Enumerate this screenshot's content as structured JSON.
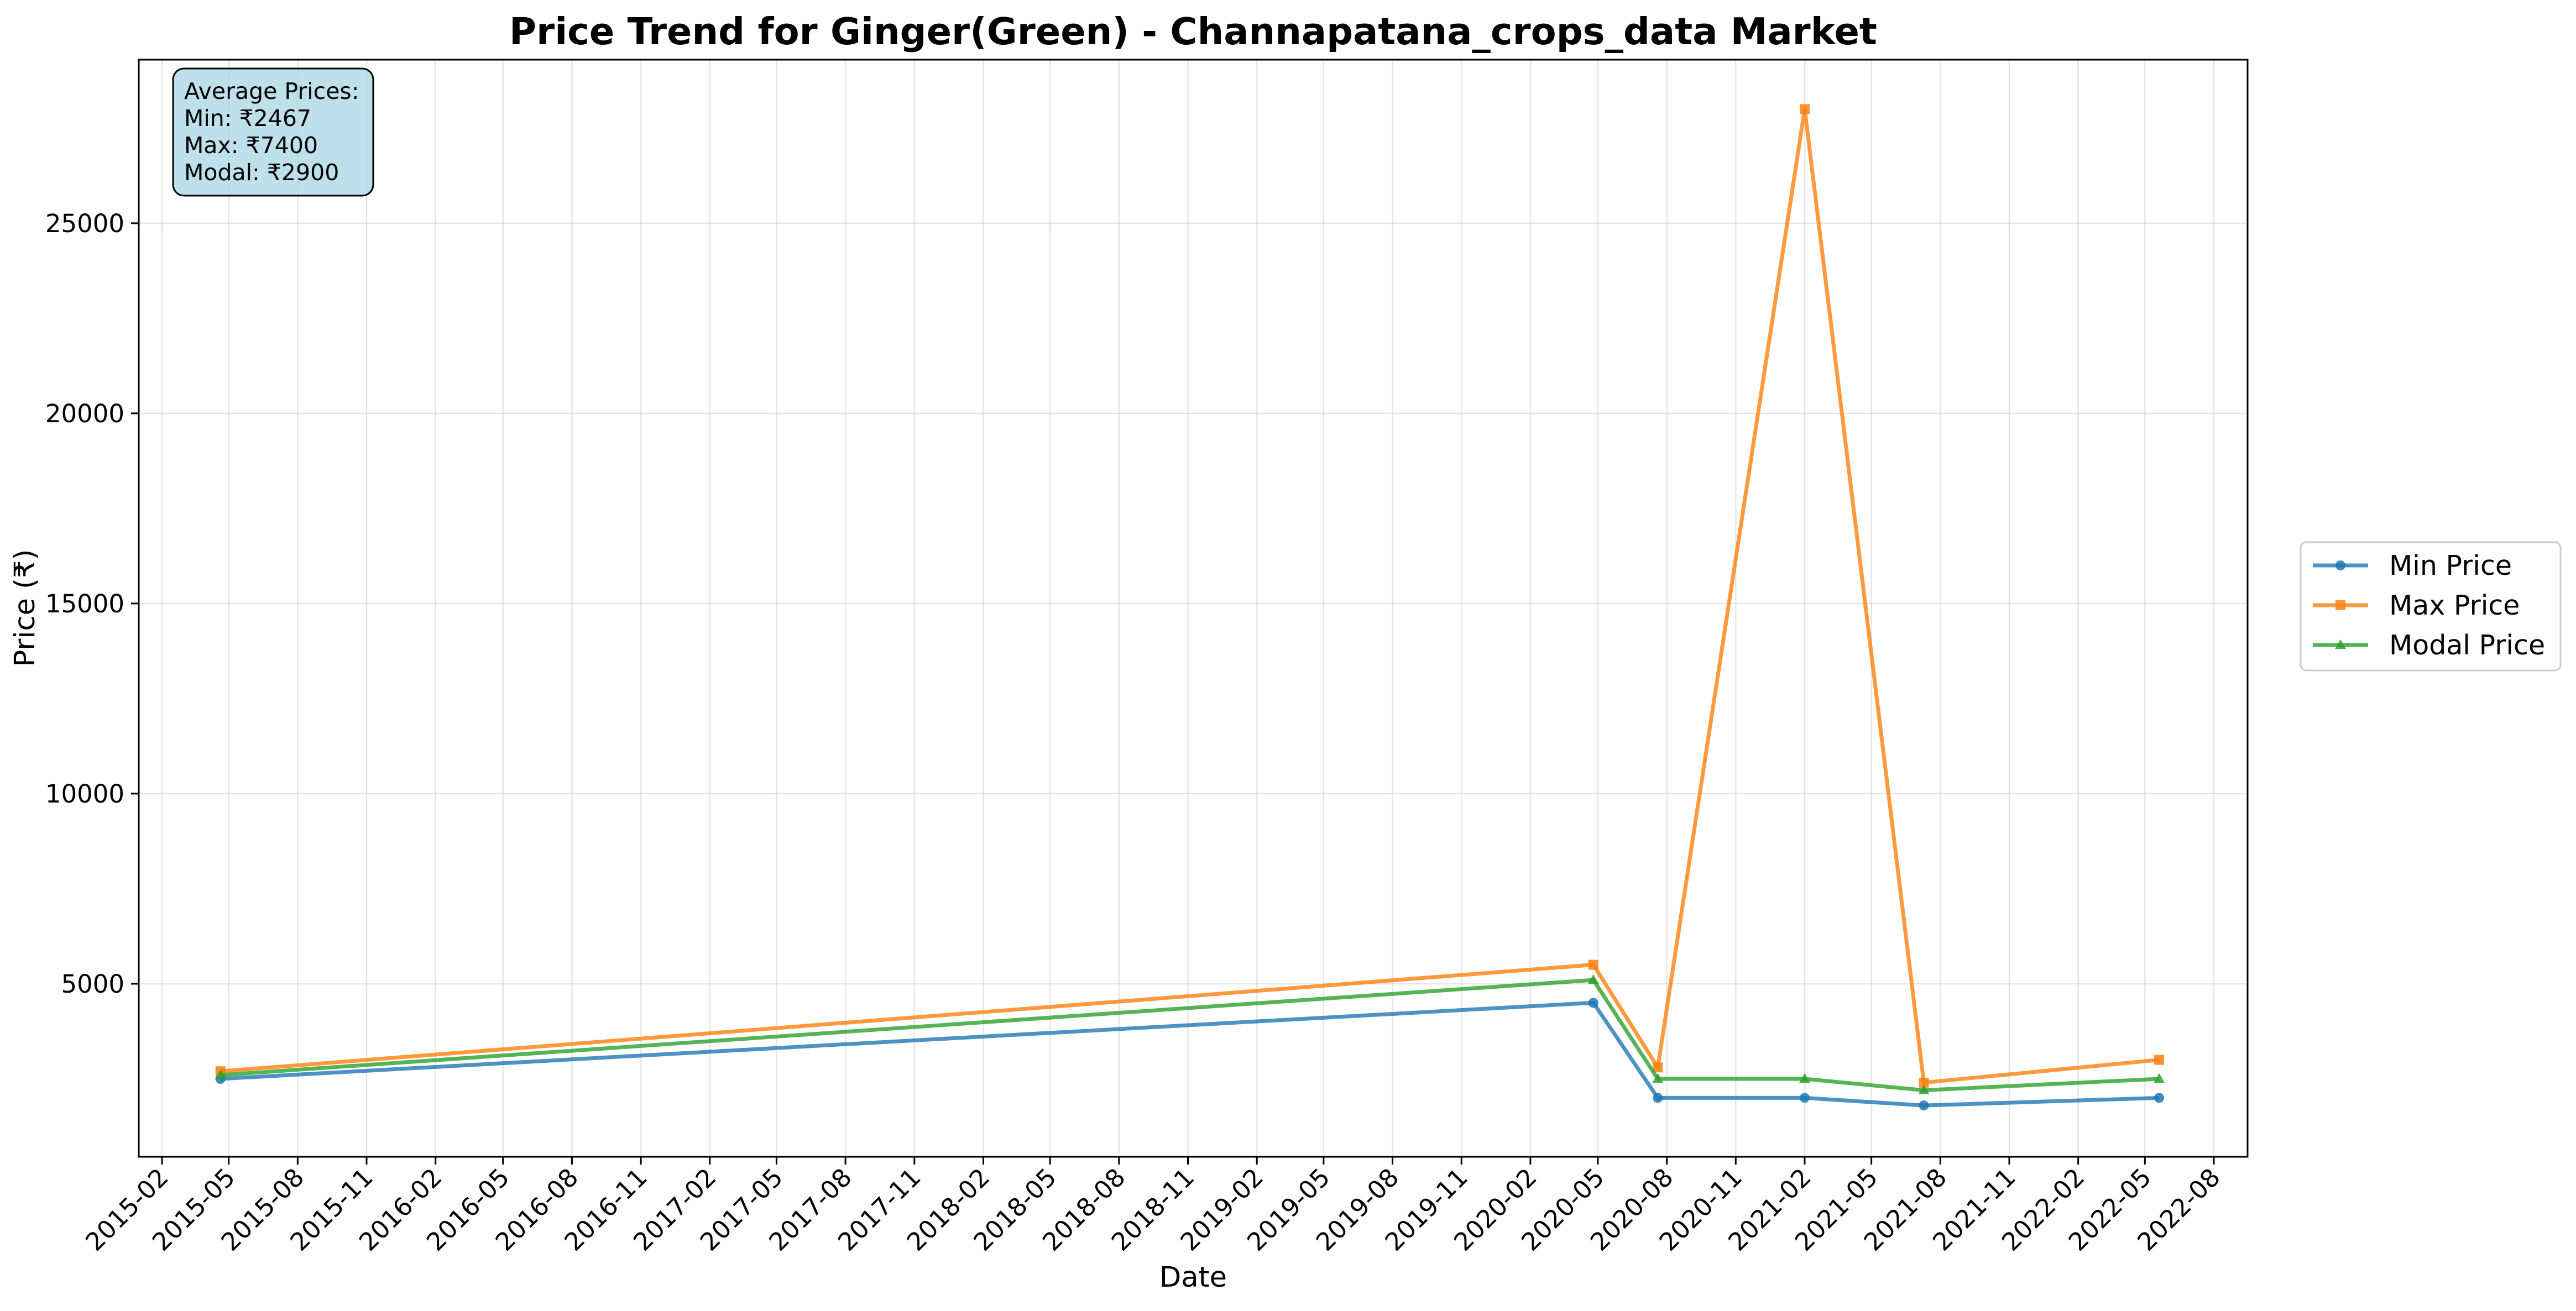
{
  "chart_data": {
    "type": "line",
    "title": "Price Trend for Ginger(Green) - Channapatana_crops_data Market",
    "xlabel": "Date",
    "ylabel": "Price (₹)",
    "x_ticks": [
      "2015-02",
      "2015-05",
      "2015-08",
      "2015-11",
      "2016-02",
      "2016-05",
      "2016-08",
      "2016-11",
      "2017-02",
      "2017-05",
      "2017-08",
      "2017-11",
      "2018-02",
      "2018-05",
      "2018-08",
      "2018-11",
      "2019-02",
      "2019-05",
      "2019-08",
      "2019-11",
      "2020-02",
      "2020-05",
      "2020-08",
      "2020-11",
      "2021-02",
      "2021-05",
      "2021-08",
      "2021-11",
      "2022-02",
      "2022-05",
      "2022-08"
    ],
    "x_range": [
      "2015-01-01",
      "2022-09-15"
    ],
    "y_ticks": [
      5000,
      10000,
      15000,
      20000,
      25000
    ],
    "ylim": [
      450,
      29300
    ],
    "grid": true,
    "legend_position": "outside right",
    "x": [
      "2015-04-20",
      "2020-04-25",
      "2020-07-20",
      "2021-02-01",
      "2021-07-10",
      "2022-05-20"
    ],
    "series": [
      {
        "name": "Min Price",
        "color": "#1f77b4",
        "marker": "circle",
        "values": [
          2500,
          4500,
          2000,
          2000,
          1800,
          2000
        ]
      },
      {
        "name": "Max Price",
        "color": "#ff7f0e",
        "marker": "square",
        "values": [
          2700,
          5500,
          2800,
          28000,
          2400,
          3000
        ]
      },
      {
        "name": "Modal Price",
        "color": "#2ca02c",
        "marker": "triangle",
        "values": [
          2600,
          5100,
          2500,
          2500,
          2200,
          2500
        ]
      }
    ],
    "annotation": {
      "lines": [
        "Average Prices:",
        "Min: ₹2467",
        "Max: ₹7400",
        "Modal: ₹2900"
      ],
      "background": "#add8e6"
    }
  }
}
